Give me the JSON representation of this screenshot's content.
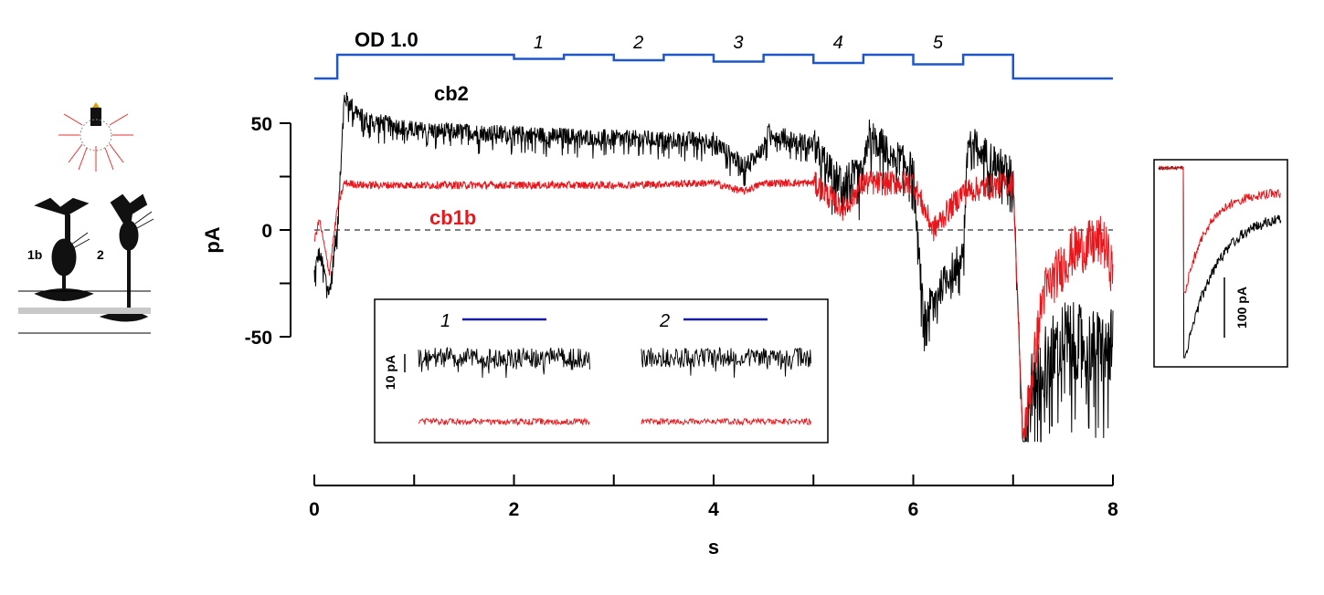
{
  "chart_data": {
    "type": "line",
    "xlabel": "s",
    "ylabel": "pA",
    "xlim": [
      0,
      8
    ],
    "ylim": [
      -100,
      70
    ],
    "x_ticks": [
      0,
      2,
      4,
      6,
      8
    ],
    "y_ticks": [
      -50,
      0,
      50
    ],
    "x_tick_labels": [
      "0",
      "2",
      "4",
      "6",
      "8"
    ],
    "y_tick_labels": [
      "-50",
      "0",
      "50"
    ],
    "baseline_y": 0,
    "stimulus": {
      "label": "OD 1.0",
      "steps": [
        {
          "label": "1",
          "start": 2.0,
          "end": 2.5
        },
        {
          "label": "2",
          "start": 3.0,
          "end": 3.5
        },
        {
          "label": "3",
          "start": 4.0,
          "end": 4.5
        },
        {
          "label": "4",
          "start": 5.0,
          "end": 5.5
        },
        {
          "label": "5",
          "start": 6.0,
          "end": 6.5
        }
      ],
      "on": 0.23,
      "off": 7.0
    },
    "series": [
      {
        "name": "cb2",
        "color": "#000000",
        "x": [
          0,
          0.05,
          0.15,
          0.23,
          0.3,
          0.5,
          1.0,
          1.5,
          2.0,
          3.0,
          4.0,
          4.3,
          4.5,
          4.55,
          5.0,
          5.2,
          5.5,
          5.55,
          6.0,
          6.1,
          6.5,
          6.55,
          7.0,
          7.1,
          7.2,
          7.5,
          7.8,
          8.0
        ],
        "y": [
          -20,
          -10,
          -30,
          2,
          62,
          52,
          47,
          46,
          45,
          43,
          42,
          30,
          38,
          46,
          40,
          25,
          25,
          45,
          28,
          -40,
          -10,
          42,
          26,
          -100,
          -70,
          -50,
          -55,
          -55
        ]
      },
      {
        "name": "cb1b",
        "color": "#e8161b",
        "x": [
          0,
          0.05,
          0.15,
          0.23,
          0.3,
          0.5,
          1.0,
          2.0,
          3.0,
          4.0,
          4.3,
          4.5,
          5.0,
          5.3,
          5.5,
          6.0,
          6.2,
          6.5,
          7.0,
          7.1,
          7.3,
          7.6,
          7.9,
          8.0
        ],
        "y": [
          -5,
          5,
          -20,
          10,
          22,
          21,
          21,
          21,
          21,
          22,
          18,
          22,
          22,
          10,
          22,
          22,
          0,
          18,
          22,
          -100,
          -30,
          -10,
          -5,
          -20
        ]
      }
    ],
    "insets": [
      {
        "steps": [
          "1",
          "2"
        ],
        "scale_label": "10 pA"
      },
      {
        "scale_label": "100 pA"
      }
    ]
  }
}
